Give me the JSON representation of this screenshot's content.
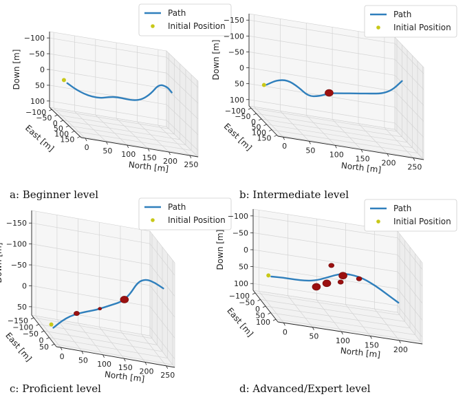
{
  "colors": {
    "path": "#2f7fbc",
    "initial_position": "#c8c818",
    "obstacle": "#9b1010",
    "pane": "#f2f2f2",
    "grid": "#d4d4d4",
    "axis": "#222222"
  },
  "legend": {
    "path_label": "Path",
    "initial_label": "Initial Position"
  },
  "captions": [
    "a: Beginner level",
    "b: Intermediate level",
    "c: Proficient level",
    "d: Advanced/Expert level"
  ],
  "chart_data": [
    {
      "type": "line",
      "title": "",
      "xlabel": "North [m]",
      "ylabel": "East [m]",
      "zlabel": "Down [m]",
      "x_ticks": [
        "0",
        "50",
        "100",
        "150",
        "200",
        "250"
      ],
      "y_ticks": [
        "−100",
        "−50",
        "0",
        "50",
        "100",
        "150"
      ],
      "z_ticks": [
        "−100",
        "−50",
        "0",
        "50",
        "100"
      ],
      "xlim": [
        -10,
        270
      ],
      "ylim": [
        -120,
        160
      ],
      "zlim": [
        -120,
        120
      ],
      "series": [
        {
          "name": "Path",
          "x": [
            0,
            20,
            40,
            60,
            80,
            100,
            120,
            140,
            160,
            180,
            200,
            220,
            240,
            250
          ],
          "y": [
            0,
            0,
            0,
            0,
            0,
            0,
            0,
            0,
            0,
            0,
            0,
            0,
            0,
            0
          ],
          "z": [
            0,
            15,
            25,
            30,
            30,
            22,
            18,
            20,
            20,
            12,
            -10,
            -45,
            -40,
            -25
          ]
        }
      ],
      "initial_position": {
        "x": -8,
        "y": 0,
        "z": -8
      },
      "obstacles": []
    },
    {
      "type": "line",
      "title": "",
      "xlabel": "North [m]",
      "ylabel": "East [m]",
      "zlabel": "Down [m]",
      "x_ticks": [
        "0",
        "50",
        "100",
        "150",
        "200",
        "250"
      ],
      "y_ticks": [
        "−100",
        "−50",
        "0",
        "50",
        "100",
        "150"
      ],
      "z_ticks": [
        "−150",
        "−100",
        "−50",
        "0",
        "50",
        "100"
      ],
      "xlim": [
        -10,
        270
      ],
      "ylim": [
        -120,
        160
      ],
      "zlim": [
        -170,
        120
      ],
      "series": [
        {
          "name": "Path",
          "x": [
            0,
            20,
            40,
            60,
            80,
            100,
            120,
            140,
            160,
            180,
            200,
            220,
            240,
            260
          ],
          "y": [
            0,
            0,
            0,
            0,
            0,
            0,
            0,
            0,
            0,
            0,
            0,
            0,
            0,
            0
          ],
          "z": [
            10,
            -10,
            -15,
            0,
            25,
            20,
            5,
            0,
            -5,
            -10,
            -15,
            -20,
            -35,
            -70
          ]
        }
      ],
      "initial_position": {
        "x": -5,
        "y": 0,
        "z": 12
      },
      "obstacles": [
        {
          "x": 120,
          "y": 0,
          "z": 4,
          "size": "large"
        }
      ]
    },
    {
      "type": "line",
      "title": "",
      "xlabel": "North [m]",
      "ylabel": "East [m]",
      "zlabel": "Down [m]",
      "x_ticks": [
        "0",
        "50",
        "100",
        "150",
        "200",
        "250"
      ],
      "y_ticks": [
        "−150",
        "−100",
        "−50",
        "0",
        "50"
      ],
      "z_ticks": [
        "−150",
        "−100",
        "−50",
        "0",
        "50"
      ],
      "xlim": [
        -10,
        270
      ],
      "ylim": [
        -170,
        70
      ],
      "zlim": [
        -180,
        70
      ],
      "series": [
        {
          "name": "Path",
          "x": [
            0,
            20,
            40,
            60,
            80,
            100,
            120,
            140,
            160,
            180,
            200,
            220,
            240,
            260
          ],
          "y": [
            0,
            0,
            0,
            0,
            0,
            0,
            0,
            0,
            0,
            0,
            0,
            0,
            0,
            0
          ],
          "z": [
            45,
            25,
            10,
            0,
            -8,
            -15,
            -25,
            -35,
            -45,
            -65,
            -100,
            -110,
            -105,
            -95
          ]
        }
      ],
      "initial_position": {
        "x": -5,
        "y": 0,
        "z": 38
      },
      "obstacles": [
        {
          "x": 55,
          "y": 0,
          "z": 1,
          "size": "medium"
        },
        {
          "x": 110,
          "y": 0,
          "z": -20,
          "size": "small"
        },
        {
          "x": 168,
          "y": 0,
          "z": -52,
          "size": "large"
        }
      ]
    },
    {
      "type": "line",
      "title": "",
      "xlabel": "North [m]",
      "ylabel": "East [m]",
      "zlabel": "Down [m]",
      "x_ticks": [
        "0",
        "50",
        "100",
        "150",
        "200"
      ],
      "y_ticks": [
        "−100",
        "−50",
        "0",
        "50",
        "100"
      ],
      "z_ticks": [
        "−100",
        "−50",
        "0",
        "50",
        "100"
      ],
      "xlim": [
        -10,
        240
      ],
      "ylim": [
        -120,
        120
      ],
      "zlim": [
        -120,
        120
      ],
      "series": [
        {
          "name": "Path",
          "x": [
            0,
            20,
            40,
            60,
            80,
            100,
            120,
            140,
            160,
            180,
            200,
            220
          ],
          "y": [
            0,
            0,
            0,
            0,
            0,
            0,
            0,
            0,
            0,
            0,
            0,
            0
          ],
          "z": [
            30,
            28,
            28,
            27,
            20,
            5,
            -10,
            -12,
            -5,
            10,
            30,
            50
          ]
        }
      ],
      "initial_position": {
        "x": -5,
        "y": 0,
        "z": 28
      },
      "obstacles": [
        {
          "x": 78,
          "y": 0,
          "z": 40,
          "size": "large"
        },
        {
          "x": 96,
          "y": 0,
          "z": 25,
          "size": "large"
        },
        {
          "x": 104,
          "y": 0,
          "z": -30,
          "size": "medium"
        },
        {
          "x": 120,
          "y": 0,
          "z": 15,
          "size": "medium"
        },
        {
          "x": 124,
          "y": 0,
          "z": -5,
          "size": "large"
        },
        {
          "x": 152,
          "y": 0,
          "z": -3,
          "size": "medium"
        }
      ]
    }
  ]
}
